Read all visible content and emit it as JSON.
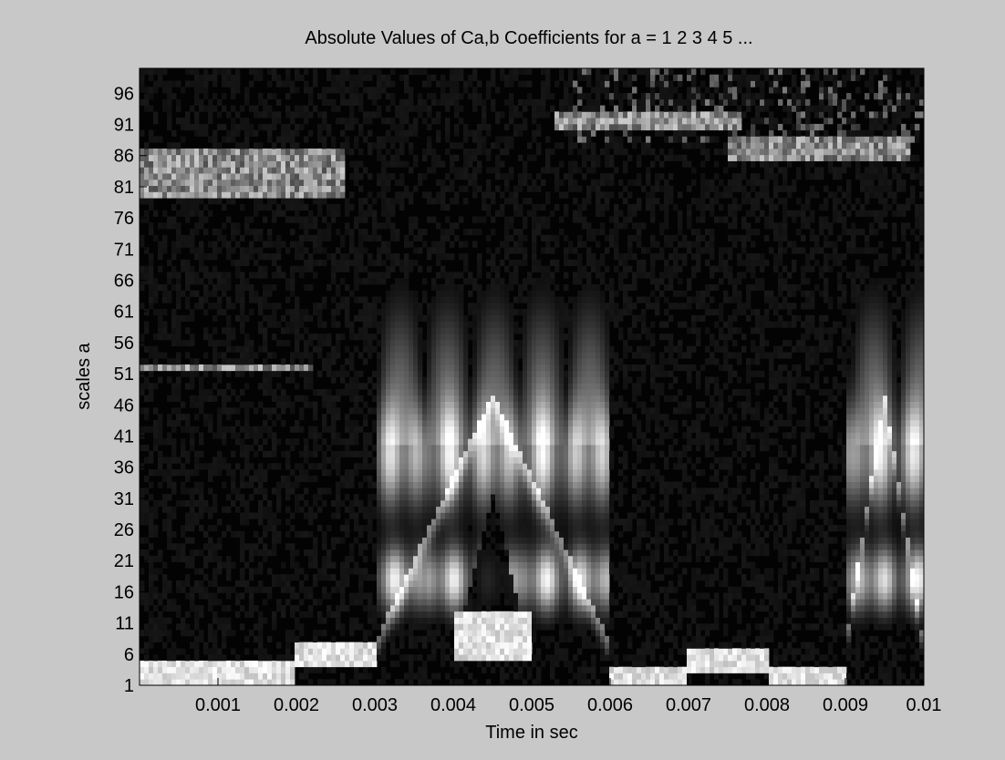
{
  "chart_data": {
    "type": "heatmap",
    "title": "Absolute Values of Ca,b Coefficients for a =  1 2 3 4 5 ...",
    "xlabel": "Time in sec",
    "ylabel": "scales a",
    "xlim": [
      0,
      0.01
    ],
    "ylim": [
      1,
      100
    ],
    "x_ticks": [
      "0.001",
      "0.002",
      "0.003",
      "0.004",
      "0.005",
      "0.006",
      "0.007",
      "0.008",
      "0.009",
      "0.01"
    ],
    "x_tick_values": [
      0.001,
      0.002,
      0.003,
      0.004,
      0.005,
      0.006,
      0.007,
      0.008,
      0.009,
      0.01
    ],
    "y_ticks": [
      "1",
      "6",
      "11",
      "16",
      "21",
      "26",
      "31",
      "36",
      "41",
      "46",
      "51",
      "56",
      "61",
      "66",
      "71",
      "76",
      "81",
      "86",
      "91",
      "96"
    ],
    "y_tick_values": [
      1,
      6,
      11,
      16,
      21,
      26,
      31,
      36,
      41,
      46,
      51,
      56,
      61,
      66,
      71,
      76,
      81,
      86,
      91,
      96
    ],
    "colormap": "grayscale (black = low, white = high)",
    "features": {
      "bursts": [
        {
          "t_start": 0.003,
          "t_end": 0.006,
          "peak_scales": [
            18,
            38
          ],
          "notch_scale_max": 32
        },
        {
          "t_start": 0.009,
          "t_end": 0.01,
          "peak_scales": [
            18,
            38
          ]
        }
      ],
      "low_scale_bands": [
        {
          "t_start": 0.0,
          "t_end": 0.002,
          "scale": 3
        },
        {
          "t_start": 0.002,
          "t_end": 0.003,
          "scale": 6
        },
        {
          "t_start": 0.004,
          "t_end": 0.005,
          "scale": 7
        },
        {
          "t_start": 0.004,
          "t_end": 0.005,
          "scale": 11
        },
        {
          "t_start": 0.006,
          "t_end": 0.007,
          "scale": 2
        },
        {
          "t_start": 0.007,
          "t_end": 0.008,
          "scale": 5
        },
        {
          "t_start": 0.008,
          "t_end": 0.009,
          "scale": 2
        }
      ],
      "high_scale_bands": [
        {
          "t_start": 0.0,
          "t_end": 0.0026,
          "scales": [
            80,
            82,
            84,
            86
          ]
        },
        {
          "t_start": 0.0,
          "t_end": 0.0022,
          "scales": [
            52
          ]
        },
        {
          "t_start": 0.0053,
          "t_end": 0.0077,
          "scales": [
            91,
            92
          ]
        },
        {
          "t_start": 0.0075,
          "t_end": 0.0098,
          "scales": [
            86,
            88
          ]
        }
      ]
    }
  }
}
